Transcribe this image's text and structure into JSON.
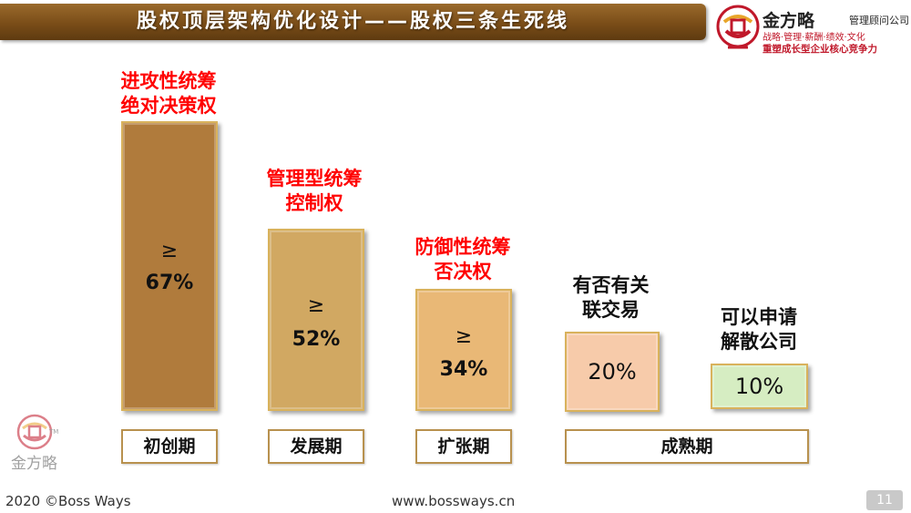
{
  "title": "股权顶层架构优化设计——股权三条生死线",
  "logo": {
    "brand": "金方略",
    "subtitle": "管理顾问公司",
    "tagline": "战略·管理·薪酬·绩效·文化",
    "slogan": "重塑成长型企业核心竞争力"
  },
  "watermark": {
    "brand": "金方略",
    "tm": "TM"
  },
  "columns": [
    {
      "label_lines": [
        "进攻性统筹",
        "绝对决策权"
      ],
      "symbol": "≥",
      "value": "67%",
      "stage": "初创期"
    },
    {
      "label_lines": [
        "管理型统筹",
        "控制权"
      ],
      "symbol": "≥",
      "value": "52%",
      "stage": "发展期"
    },
    {
      "label_lines": [
        "防御性统筹",
        "否决权"
      ],
      "symbol": "≥",
      "value": "34%",
      "stage": "扩张期"
    },
    {
      "label_lines": [
        "有否有关",
        "联交易"
      ],
      "value": "20%"
    },
    {
      "label_lines": [
        "可以申请",
        "解散公司"
      ],
      "value": "10%"
    }
  ],
  "maturity_stage": "成熟期",
  "colors": {
    "bar1": "#b07b3c",
    "bar2": "#d1a862",
    "bar3": "#e9b876",
    "bar4": "#f7cbaa",
    "bar5": "#d6edc2",
    "title_bar": "#7a4d18",
    "accent_red": "#ff0000"
  },
  "footer": {
    "copyright": "2020 ©Boss Ways",
    "website": "www.bossways.cn",
    "page": "11"
  }
}
